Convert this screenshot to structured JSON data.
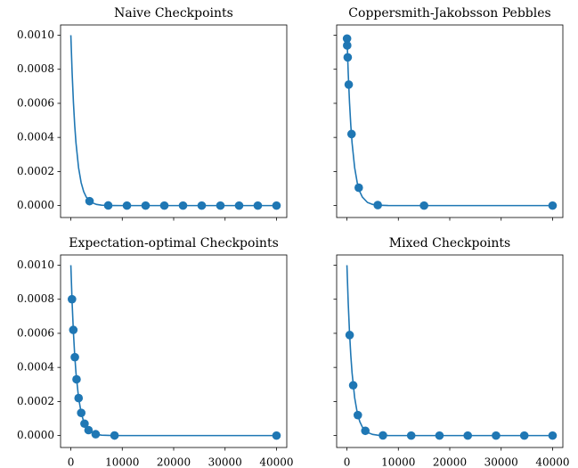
{
  "chart_data": [
    {
      "type": "line",
      "title": "Naive Checkpoints",
      "xlim": [
        -2000,
        42000
      ],
      "ylim": [
        -7e-05,
        0.00106
      ],
      "yticks": [
        {
          "value": 0,
          "label": "0.0000"
        },
        {
          "value": 0.0002,
          "label": "0.0002"
        },
        {
          "value": 0.0004,
          "label": "0.0004"
        },
        {
          "value": 0.0006,
          "label": "0.0006"
        },
        {
          "value": 0.0008,
          "label": "0.0008"
        },
        {
          "value": 0.001,
          "label": "0.0010"
        }
      ],
      "series": [
        {
          "kind": "line",
          "color": "#1f77b4",
          "x": [
            0,
            250,
            500,
            750,
            1000,
            1500,
            2000,
            2500,
            3000,
            4000,
            5000,
            6000,
            8000,
            10000,
            20000,
            40000
          ],
          "values": [
            0.001,
            0.000779,
            0.000607,
            0.000472,
            0.000368,
            0.000223,
            0.000135,
            8.2e-05,
            4.98e-05,
            1.83e-05,
            6.7e-06,
            2.5e-06,
            3e-07,
            0,
            0,
            0
          ]
        },
        {
          "kind": "scatter",
          "color": "#1f77b4",
          "x": [
            3636,
            7273,
            10909,
            14545,
            18182,
            21818,
            25455,
            29091,
            32727,
            36364,
            40000
          ],
          "values": [
            2.6e-05,
            7e-07,
            0,
            0,
            0,
            0,
            0,
            0,
            0,
            0,
            0
          ]
        }
      ]
    },
    {
      "type": "line",
      "title": "Coppersmith-Jakobsson Pebbles",
      "xlim": [
        -2000,
        42000
      ],
      "ylim": [
        -7e-05,
        0.00106
      ],
      "series": [
        {
          "kind": "line",
          "color": "#1f77b4",
          "x": [
            0,
            250,
            500,
            750,
            1000,
            1500,
            2000,
            2500,
            3000,
            4000,
            5000,
            6000,
            8000,
            10000,
            20000,
            40000
          ],
          "values": [
            0.001,
            0.000779,
            0.000607,
            0.000472,
            0.000368,
            0.000223,
            0.000135,
            8.2e-05,
            4.98e-05,
            1.83e-05,
            6.7e-06,
            2.5e-06,
            3e-07,
            0,
            0,
            0
          ]
        },
        {
          "kind": "scatter",
          "color": "#1f77b4",
          "x": [
            20,
            50,
            150,
            350,
            900,
            2300,
            6000,
            15000,
            40000
          ],
          "values": [
            0.00098,
            0.00094,
            0.00087,
            0.00071,
            0.00042,
            0.000105,
            3e-06,
            0,
            0
          ]
        }
      ]
    },
    {
      "type": "line",
      "title": "Expectation-optimal Checkpoints",
      "xlim": [
        -2000,
        42000
      ],
      "ylim": [
        -7e-05,
        0.00106
      ],
      "xticks": [
        0,
        10000,
        20000,
        30000,
        40000
      ],
      "yticks": [
        {
          "value": 0,
          "label": "0.0000"
        },
        {
          "value": 0.0002,
          "label": "0.0002"
        },
        {
          "value": 0.0004,
          "label": "0.0004"
        },
        {
          "value": 0.0006,
          "label": "0.0006"
        },
        {
          "value": 0.0008,
          "label": "0.0008"
        },
        {
          "value": 0.001,
          "label": "0.0010"
        }
      ],
      "series": [
        {
          "kind": "line",
          "color": "#1f77b4",
          "x": [
            0,
            250,
            500,
            750,
            1000,
            1500,
            2000,
            2500,
            3000,
            4000,
            5000,
            6000,
            8000,
            10000,
            20000,
            40000
          ],
          "values": [
            0.001,
            0.000779,
            0.000607,
            0.000472,
            0.000368,
            0.000223,
            0.000135,
            8.2e-05,
            4.98e-05,
            1.83e-05,
            6.7e-06,
            2.5e-06,
            3e-07,
            0,
            0,
            0
          ]
        },
        {
          "kind": "scatter",
          "color": "#1f77b4",
          "x": [
            220,
            480,
            780,
            1110,
            1510,
            2020,
            2660,
            3440,
            4830,
            8500,
            40000
          ],
          "values": [
            0.0008,
            0.00062,
            0.00046,
            0.00033,
            0.00022,
            0.000133,
            7e-05,
            3.2e-05,
            8e-06,
            5e-07,
            0
          ]
        }
      ]
    },
    {
      "type": "line",
      "title": "Mixed Checkpoints",
      "xlim": [
        -2000,
        42000
      ],
      "ylim": [
        -7e-05,
        0.00106
      ],
      "xticks": [
        0,
        10000,
        20000,
        30000,
        40000
      ],
      "series": [
        {
          "kind": "line",
          "color": "#1f77b4",
          "x": [
            0,
            250,
            500,
            750,
            1000,
            1500,
            2000,
            2500,
            3000,
            4000,
            5000,
            6000,
            8000,
            10000,
            20000,
            40000
          ],
          "values": [
            0.001,
            0.000779,
            0.000607,
            0.000472,
            0.000368,
            0.000223,
            0.000135,
            8.2e-05,
            4.98e-05,
            1.83e-05,
            6.7e-06,
            2.5e-06,
            3e-07,
            0,
            0,
            0
          ]
        },
        {
          "kind": "scatter",
          "color": "#1f77b4",
          "x": [
            530,
            1220,
            2120,
            3580,
            7000,
            12500,
            18000,
            23500,
            29000,
            34500,
            40000
          ],
          "values": [
            0.00059,
            0.000295,
            0.00012,
            2.8e-05,
            1e-06,
            0,
            0,
            0,
            0,
            0,
            0
          ]
        }
      ]
    }
  ]
}
